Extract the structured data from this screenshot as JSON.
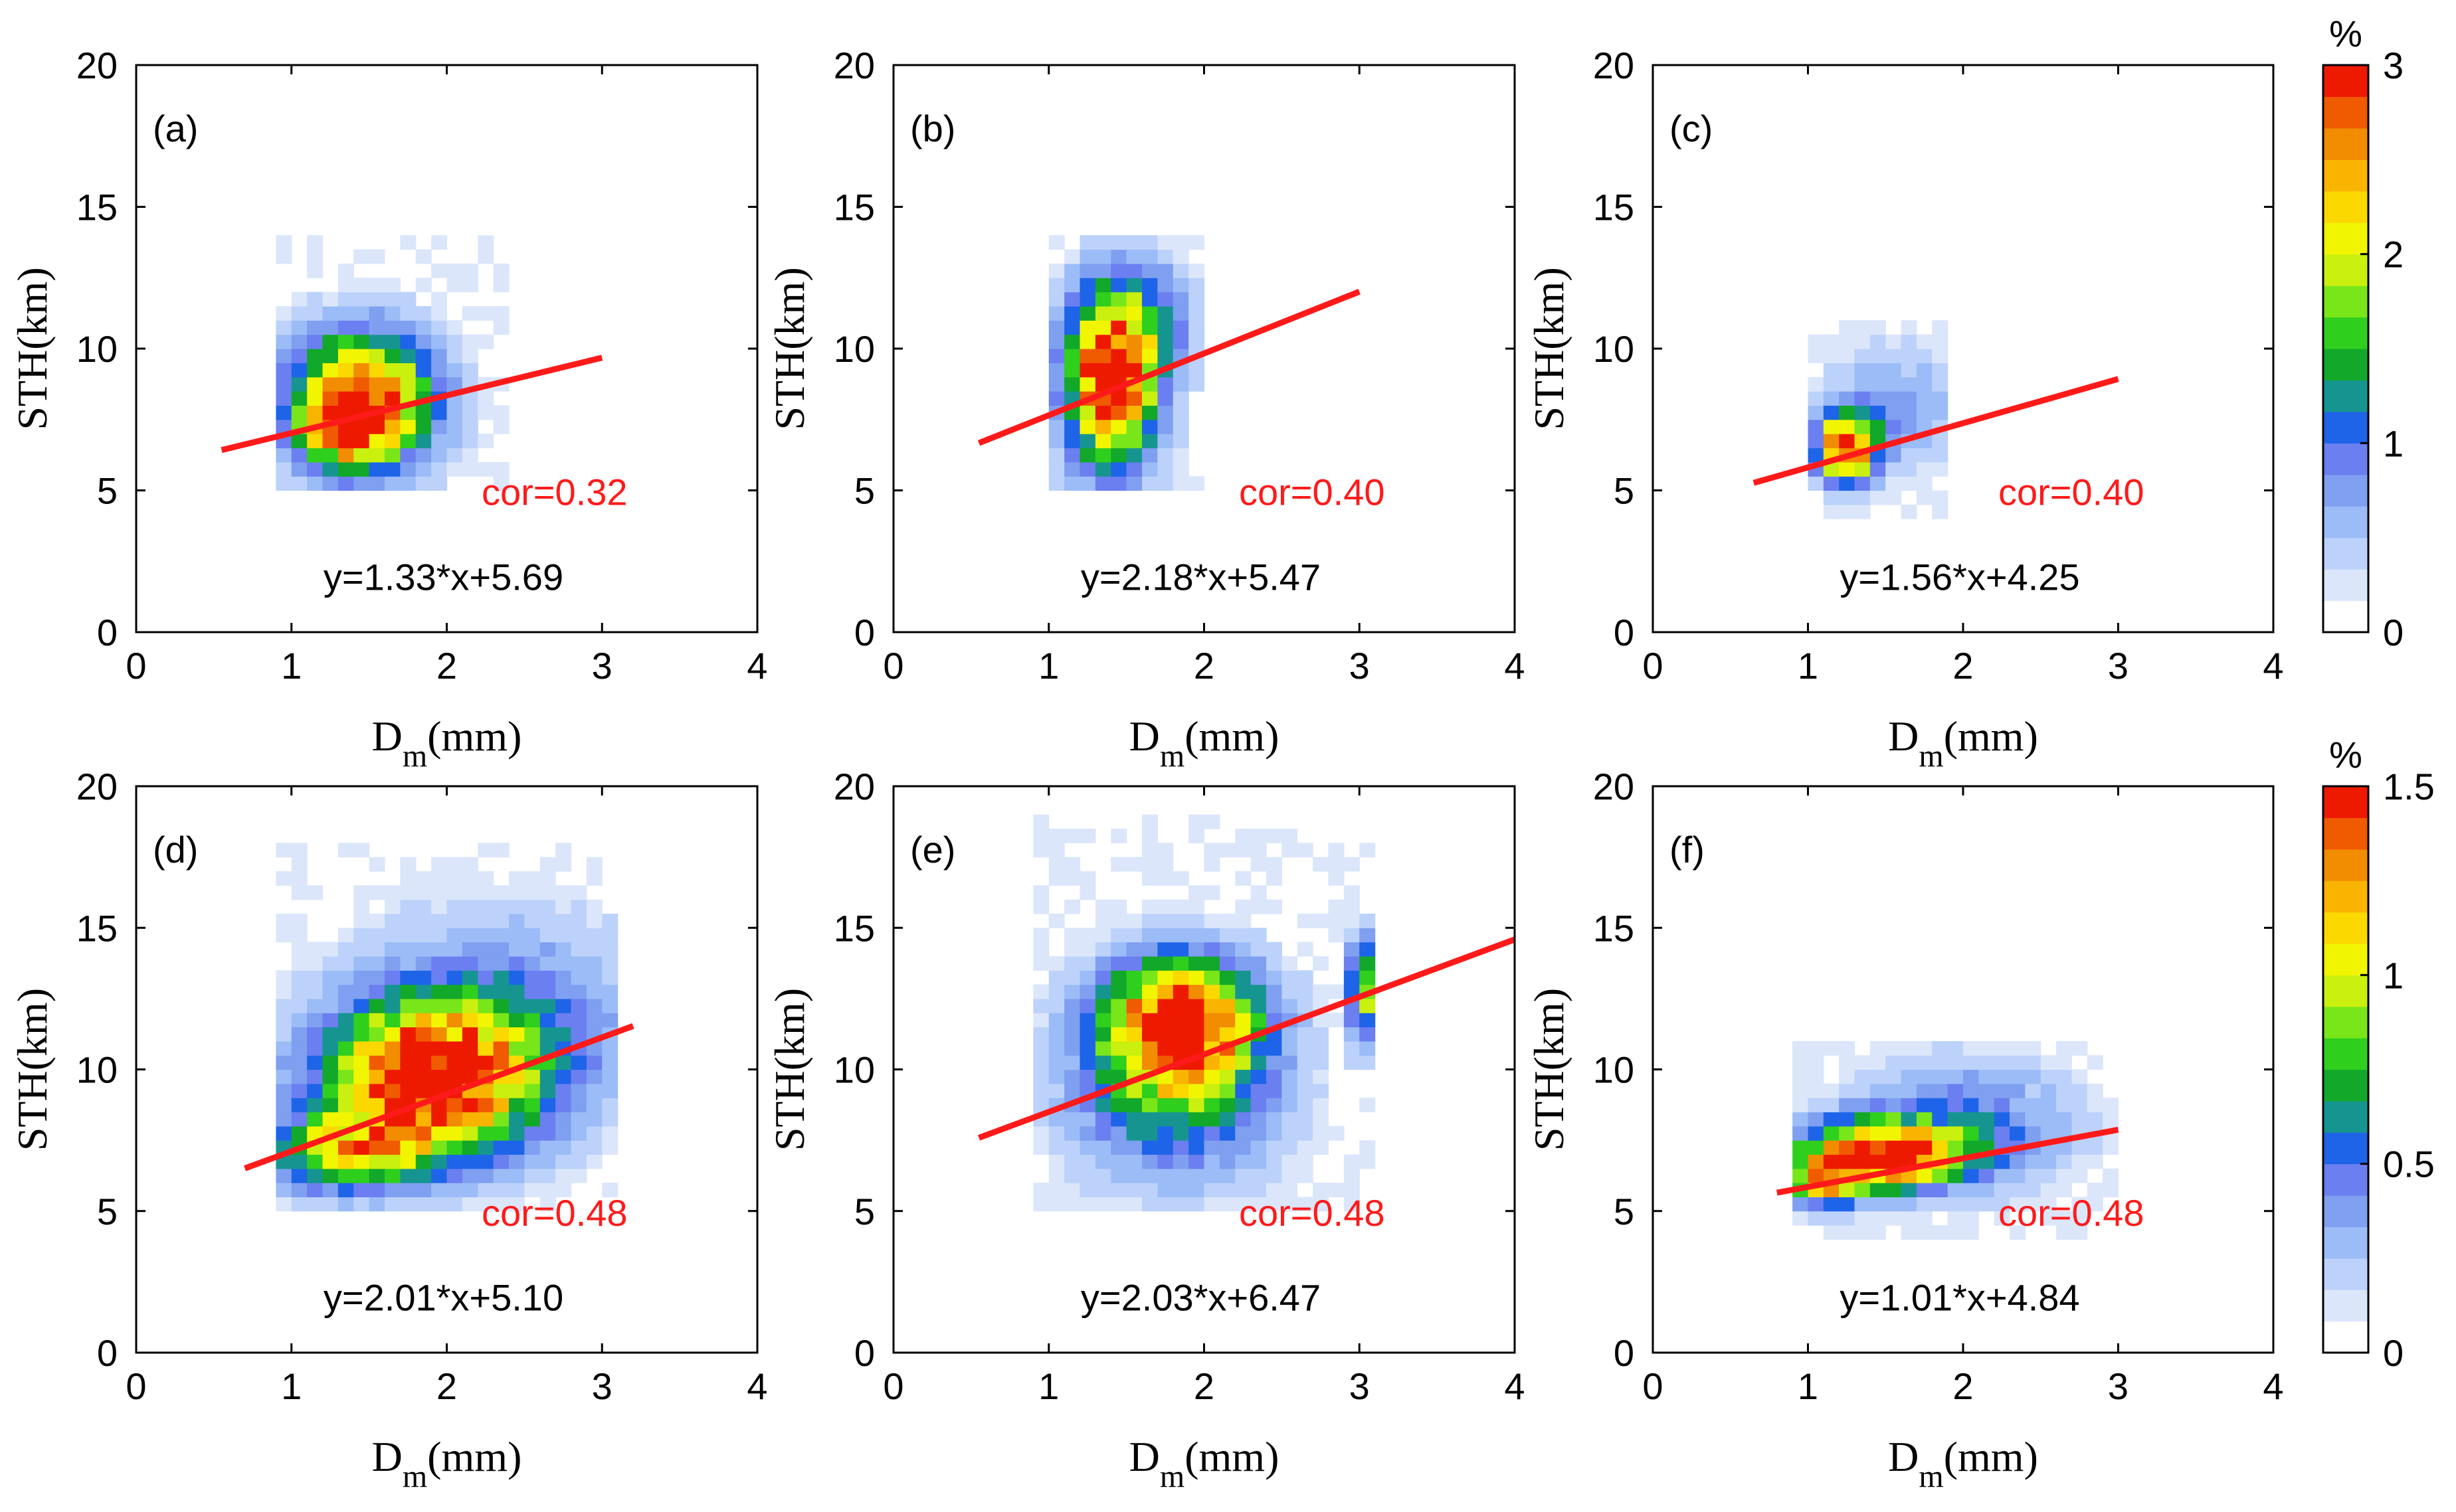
{
  "figure": {
    "description_type": "2D density heatmaps of STH vs Dm with linear fits"
  },
  "colors": {
    "fit_line": "#ff1a1a",
    "cor_text": "#ff1a1a",
    "colormap": [
      "#ffffff",
      "#dbe6fb",
      "#bcd2fa",
      "#9bbcf7",
      "#7f9ff0",
      "#6b7ff0",
      "#1e64e8",
      "#169590",
      "#12a82a",
      "#2fcf1e",
      "#79e61a",
      "#c9f00e",
      "#f2f500",
      "#fbd900",
      "#f9b400",
      "#f28c00",
      "#f05a00",
      "#ee1a00"
    ]
  },
  "axes_common": {
    "xlabel_main": "D",
    "xlabel_sub": "m",
    "xlabel_unit": "(mm)",
    "ylabel": "STH(km)",
    "xlim": [
      0,
      4
    ],
    "ylim": [
      0,
      20
    ],
    "xticks": [
      "0",
      "1",
      "2",
      "3",
      "4"
    ],
    "yticks": [
      "0",
      "5",
      "10",
      "15",
      "20"
    ]
  },
  "colorbars": [
    {
      "unit": "%",
      "ticks": [
        "0",
        "1",
        "2",
        "3"
      ],
      "max": 3
    },
    {
      "unit": "%",
      "ticks": [
        "0",
        "0.5",
        "1",
        "1.5"
      ],
      "max": 1.5
    }
  ],
  "chart_data": [
    {
      "type": "heatmap",
      "panel": "(a)",
      "cor": "cor=0.32",
      "equation": "y=1.33*x+5.69",
      "fit": {
        "slope": 1.33,
        "intercept": 5.69,
        "x_range": [
          0.55,
          3.0
        ]
      },
      "cmax": 3,
      "blobs": [
        {
          "x": 1.45,
          "y": 8.2,
          "sx": 0.32,
          "sy": 1.6,
          "peak": 3.0
        },
        {
          "x": 1.35,
          "y": 7.0,
          "sx": 0.2,
          "sy": 0.8,
          "peak": 1.2
        }
      ],
      "extent": {
        "x": [
          0.9,
          2.4
        ],
        "y": [
          5,
          14
        ]
      }
    },
    {
      "type": "heatmap",
      "panel": "(b)",
      "cor": "cor=0.40",
      "equation": "y=2.18*x+5.47",
      "fit": {
        "slope": 2.18,
        "intercept": 5.47,
        "x_range": [
          0.55,
          3.0
        ]
      },
      "cmax": 3,
      "blobs": [
        {
          "x": 1.4,
          "y": 8.6,
          "sx": 0.2,
          "sy": 2.0,
          "peak": 3.0
        },
        {
          "x": 1.55,
          "y": 11.0,
          "sx": 0.25,
          "sy": 1.5,
          "peak": 1.1
        }
      ],
      "extent": {
        "x": [
          1.0,
          2.0
        ],
        "y": [
          5,
          14
        ]
      }
    },
    {
      "type": "heatmap",
      "panel": "(c)",
      "cor": "cor=0.40",
      "equation": "y=1.56*x+4.25",
      "fit": {
        "slope": 1.56,
        "intercept": 4.25,
        "x_range": [
          0.65,
          3.0
        ]
      },
      "cmax": 3,
      "blobs": [
        {
          "x": 1.25,
          "y": 6.5,
          "sx": 0.13,
          "sy": 0.8,
          "peak": 3.0
        },
        {
          "x": 1.55,
          "y": 8.0,
          "sx": 0.3,
          "sy": 1.5,
          "peak": 0.6
        }
      ],
      "extent": {
        "x": [
          1.0,
          1.95
        ],
        "y": [
          4,
          11
        ]
      }
    },
    {
      "type": "heatmap",
      "panel": "(d)",
      "cor": "cor=0.48",
      "equation": "y=2.01*x+5.10",
      "fit": {
        "slope": 2.01,
        "intercept": 5.1,
        "x_range": [
          0.7,
          3.2
        ]
      },
      "cmax": 1.5,
      "blobs": [
        {
          "x": 1.85,
          "y": 9.5,
          "sx": 0.45,
          "sy": 1.8,
          "peak": 1.5
        },
        {
          "x": 1.3,
          "y": 7.0,
          "sx": 0.35,
          "sy": 0.9,
          "peak": 0.8
        },
        {
          "x": 2.3,
          "y": 11.5,
          "sx": 0.6,
          "sy": 2.5,
          "peak": 0.5
        }
      ],
      "extent": {
        "x": [
          0.9,
          3.1
        ],
        "y": [
          5,
          18
        ]
      }
    },
    {
      "type": "heatmap",
      "panel": "(e)",
      "cor": "cor=0.48",
      "equation": "y=2.03*x+6.47",
      "fit": {
        "slope": 2.03,
        "intercept": 6.47,
        "x_range": [
          0.55,
          4.0
        ]
      },
      "cmax": 1.5,
      "blobs": [
        {
          "x": 1.85,
          "y": 11.8,
          "sx": 0.35,
          "sy": 1.5,
          "peak": 1.5
        },
        {
          "x": 1.8,
          "y": 9.0,
          "sx": 0.45,
          "sy": 2.0,
          "peak": 0.65
        },
        {
          "x": 3.02,
          "y": 12.8,
          "sx": 0.06,
          "sy": 1.2,
          "peak": 1.0
        }
      ],
      "extent": {
        "x": [
          0.9,
          3.1
        ],
        "y": [
          5,
          19
        ]
      }
    },
    {
      "type": "heatmap",
      "panel": "(f)",
      "cor": "cor=0.48",
      "equation": "y=1.01*x+4.84",
      "fit": {
        "slope": 1.01,
        "intercept": 4.84,
        "x_range": [
          0.8,
          3.0
        ]
      },
      "cmax": 1.5,
      "blobs": [
        {
          "x": 1.45,
          "y": 7.0,
          "sx": 0.35,
          "sy": 0.8,
          "peak": 1.5
        },
        {
          "x": 1.1,
          "y": 6.0,
          "sx": 0.15,
          "sy": 0.6,
          "peak": 0.9
        },
        {
          "x": 2.0,
          "y": 8.0,
          "sx": 0.5,
          "sy": 1.5,
          "peak": 0.45
        }
      ],
      "extent": {
        "x": [
          0.9,
          3.05
        ],
        "y": [
          4,
          11
        ]
      }
    }
  ]
}
